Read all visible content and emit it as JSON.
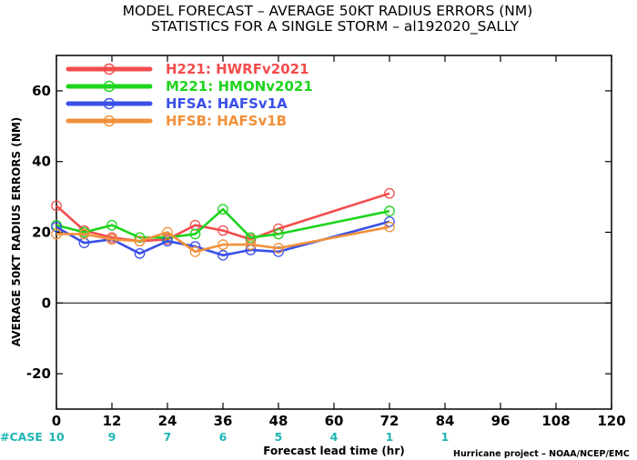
{
  "chart_data": {
    "type": "line",
    "title": "MODEL FORECAST – AVERAGE 50KT RADIUS ERRORS (NM)",
    "subtitle": "STATISTICS FOR A SINGLE STORM – al192020_SALLY",
    "xlabel": "Forecast lead time (hr)",
    "ylabel": "AVERAGE 50KT RADIUS ERRORS (NM)",
    "xlim": [
      0,
      120
    ],
    "ylim": [
      -30,
      70
    ],
    "xticks": [
      0,
      12,
      24,
      36,
      48,
      60,
      72,
      84,
      96,
      108,
      120
    ],
    "yticks": [
      -20,
      0,
      20,
      40,
      60
    ],
    "grid": false,
    "zero_line": true,
    "legend_position": "top-left",
    "series": [
      {
        "name": "H221: HWRFv2021",
        "color": "#f24d4d",
        "x": [
          0,
          6,
          12,
          18,
          24,
          30,
          36,
          42,
          48,
          72
        ],
        "y": [
          27.5,
          20.5,
          18.5,
          17.5,
          18.0,
          22.0,
          20.5,
          18.0,
          21.0,
          31.0
        ]
      },
      {
        "name": "M221: HMONv2021",
        "color": "#1ed41e",
        "x": [
          0,
          6,
          12,
          18,
          24,
          30,
          36,
          42,
          48,
          72
        ],
        "y": [
          22.0,
          20.0,
          22.0,
          18.5,
          18.5,
          19.5,
          26.5,
          18.5,
          19.5,
          26.0
        ]
      },
      {
        "name": "HFSA: HAFSv1A",
        "color": "#3a4fe8",
        "x": [
          0,
          6,
          12,
          18,
          24,
          30,
          36,
          42,
          48,
          72
        ],
        "y": [
          21.5,
          17.0,
          18.0,
          14.0,
          17.5,
          16.0,
          13.5,
          15.0,
          14.5,
          23.0
        ]
      },
      {
        "name": "HFSB: HAFSv1B",
        "color": "#f2913a",
        "x": [
          0,
          6,
          12,
          18,
          24,
          30,
          36,
          42,
          48,
          72
        ],
        "y": [
          19.5,
          19.5,
          18.0,
          17.5,
          20.0,
          14.5,
          16.5,
          16.5,
          15.5,
          21.5
        ]
      }
    ],
    "case_label": "#CASE",
    "case_counts": [
      {
        "x": 0,
        "label": "10"
      },
      {
        "x": 12,
        "label": "9"
      },
      {
        "x": 24,
        "label": "7"
      },
      {
        "x": 36,
        "label": "6"
      },
      {
        "x": 48,
        "label": "5"
      },
      {
        "x": 60,
        "label": "4"
      },
      {
        "x": 72,
        "label": "1"
      },
      {
        "x": 84,
        "label": "1"
      }
    ],
    "credit": "Hurricane project – NOAA/NCEP/EMC"
  }
}
